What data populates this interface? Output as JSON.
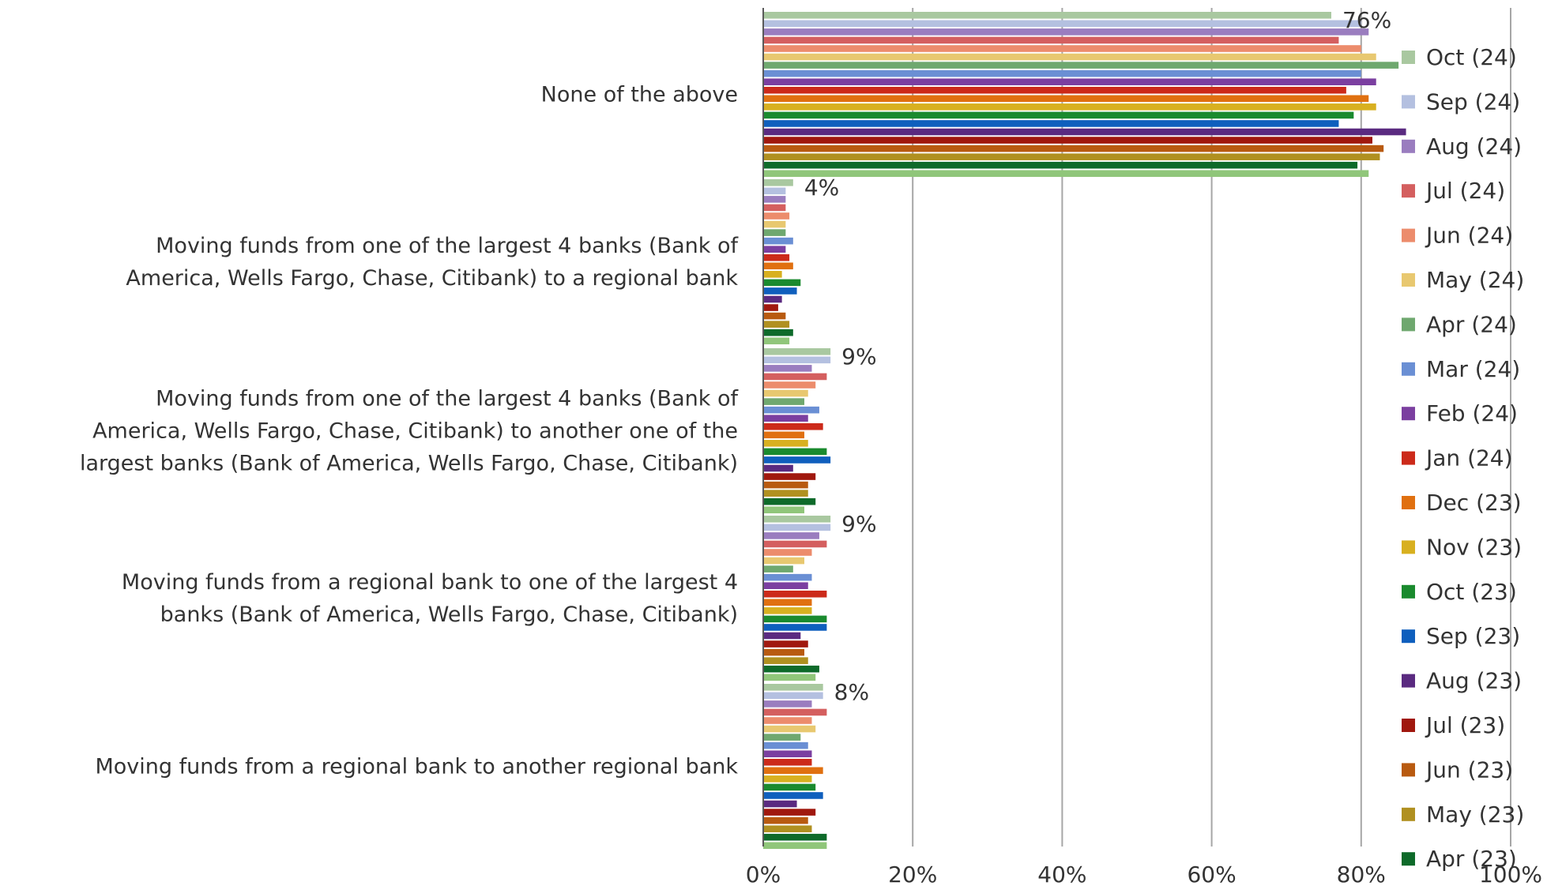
{
  "chart_data": {
    "type": "bar",
    "orientation": "horizontal",
    "title": "",
    "xlabel": "",
    "ylabel": "",
    "xlim": [
      0,
      100
    ],
    "x_ticks": [
      "0%",
      "20%",
      "40%",
      "60%",
      "80%",
      "100%"
    ],
    "grid": true,
    "legend_position": "right",
    "categories": [
      [
        "None of the above"
      ],
      [
        "Moving funds from one of the largest 4 banks (Bank of",
        "America, Wells Fargo, Chase, Citibank) to a regional bank"
      ],
      [
        "Moving funds from one of the largest 4 banks (Bank of",
        "America, Wells Fargo, Chase, Citibank) to another one of the",
        "largest banks (Bank of America, Wells Fargo, Chase, Citibank)"
      ],
      [
        "Moving funds from a regional bank to one of the largest 4",
        "banks (Bank of America, Wells Fargo, Chase, Citibank)"
      ],
      [
        "Moving funds from a regional bank to another regional bank"
      ]
    ],
    "data_labels": [
      "76%",
      "4%",
      "9%",
      "9%",
      "8%"
    ],
    "series": [
      {
        "name": "Oct (24)",
        "color": "#a9c8a0",
        "values": [
          76,
          4,
          9,
          9,
          8
        ]
      },
      {
        "name": "Sep (24)",
        "color": "#b4c0e0",
        "values": [
          80,
          3,
          9,
          9,
          8
        ]
      },
      {
        "name": "Aug (24)",
        "color": "#9a7dbf",
        "values": [
          81,
          3,
          6.5,
          7.5,
          6.5
        ]
      },
      {
        "name": "Jul (24)",
        "color": "#d45f5f",
        "values": [
          77,
          3,
          8.5,
          8.5,
          8.5
        ]
      },
      {
        "name": "Jun (24)",
        "color": "#ec8c6c",
        "values": [
          80,
          3.5,
          7,
          6.5,
          6.5
        ]
      },
      {
        "name": "May (24)",
        "color": "#e8c870",
        "values": [
          82,
          3,
          6,
          5.5,
          7
        ]
      },
      {
        "name": "Apr (24)",
        "color": "#6fa86f",
        "values": [
          85,
          3,
          5.5,
          4,
          5
        ]
      },
      {
        "name": "Mar (24)",
        "color": "#6a8fd4",
        "values": [
          80,
          4,
          7.5,
          6.5,
          6
        ]
      },
      {
        "name": "Feb (24)",
        "color": "#7b3fa0",
        "values": [
          82,
          3,
          6,
          6,
          6.5
        ]
      },
      {
        "name": "Jan (24)",
        "color": "#cc2a1a",
        "values": [
          78,
          3.5,
          8,
          8.5,
          6.5
        ]
      },
      {
        "name": "Dec (23)",
        "color": "#e07010",
        "values": [
          81,
          4,
          5.5,
          6.5,
          8
        ]
      },
      {
        "name": "Nov (23)",
        "color": "#d8b020",
        "values": [
          82,
          2.5,
          6,
          6.5,
          6.5
        ]
      },
      {
        "name": "Oct (23)",
        "color": "#1a8a2e",
        "values": [
          79,
          5,
          8.5,
          8.5,
          7
        ]
      },
      {
        "name": "Sep (23)",
        "color": "#0f5fbd",
        "values": [
          77,
          4.5,
          9,
          8.5,
          8
        ]
      },
      {
        "name": "Aug (23)",
        "color": "#5a2a80",
        "values": [
          86,
          2.5,
          4,
          5,
          4.5
        ]
      },
      {
        "name": "Jul (23)",
        "color": "#a0180e",
        "values": [
          81.5,
          2,
          7,
          6,
          7
        ]
      },
      {
        "name": "Jun (23)",
        "color": "#b85a10",
        "values": [
          83,
          3,
          6,
          5.5,
          6
        ]
      },
      {
        "name": "May (23)",
        "color": "#b09020",
        "values": [
          82.5,
          3.5,
          6,
          6,
          6.5
        ]
      },
      {
        "name": "Apr (23)",
        "color": "#0e6a2a",
        "values": [
          79.5,
          4,
          7,
          7.5,
          8.5
        ]
      },
      {
        "name": "",
        "color": "#90c67a",
        "values": [
          81,
          3.5,
          5.5,
          7,
          8.5
        ]
      }
    ]
  }
}
